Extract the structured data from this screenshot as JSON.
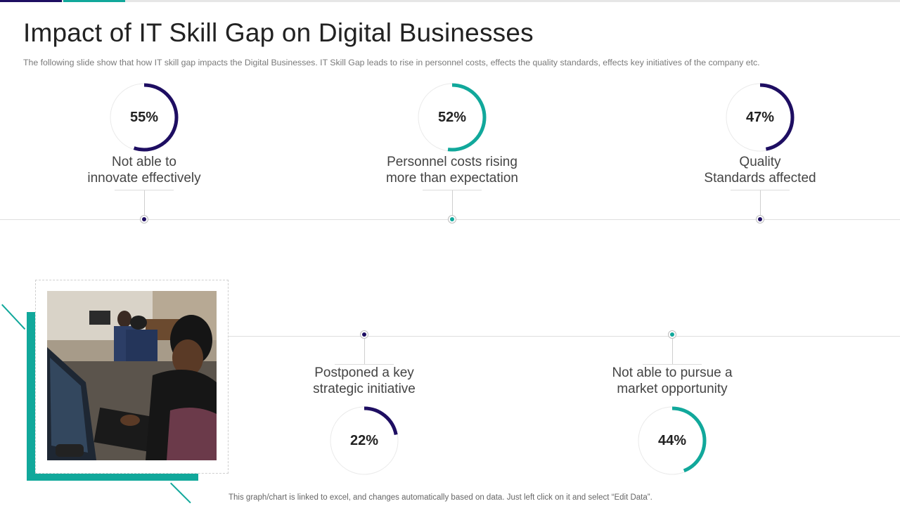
{
  "slide": {
    "title": "Impact of IT Skill Gap on Digital Businesses",
    "subtitle": "The following  slide show that how IT  skill gap impacts the Digital Businesses. IT Skill Gap leads to rise in personnel  costs, effects the quality standards, effects key initiatives of the company etc.",
    "footer": "This graph/chart is linked to excel,  and changes automatically based on data. Just left click on it and select “Edit Data”."
  },
  "colors": {
    "navy": "#1e0e62",
    "teal": "#11a89b",
    "track": "#eaeaea"
  },
  "items": [
    {
      "percent_label": "55%",
      "value": 55,
      "label_line1": "Not able to",
      "label_line2": "innovate effectively",
      "color": "#1e0e62"
    },
    {
      "percent_label": "52%",
      "value": 52,
      "label_line1": "Personnel costs rising",
      "label_line2": "more than expectation",
      "color": "#11a89b"
    },
    {
      "percent_label": "47%",
      "value": 47,
      "label_line1": "Quality",
      "label_line2": "Standards affected",
      "color": "#1e0e62"
    },
    {
      "percent_label": "22%",
      "value": 22,
      "label_line1": "Postponed a key",
      "label_line2": "strategic initiative",
      "color": "#1e0e62"
    },
    {
      "percent_label": "44%",
      "value": 44,
      "label_line1": "Not able to pursue a",
      "label_line2": "market opportunity",
      "color": "#11a89b"
    }
  ],
  "photo": {
    "description_icon": "office-photo"
  }
}
